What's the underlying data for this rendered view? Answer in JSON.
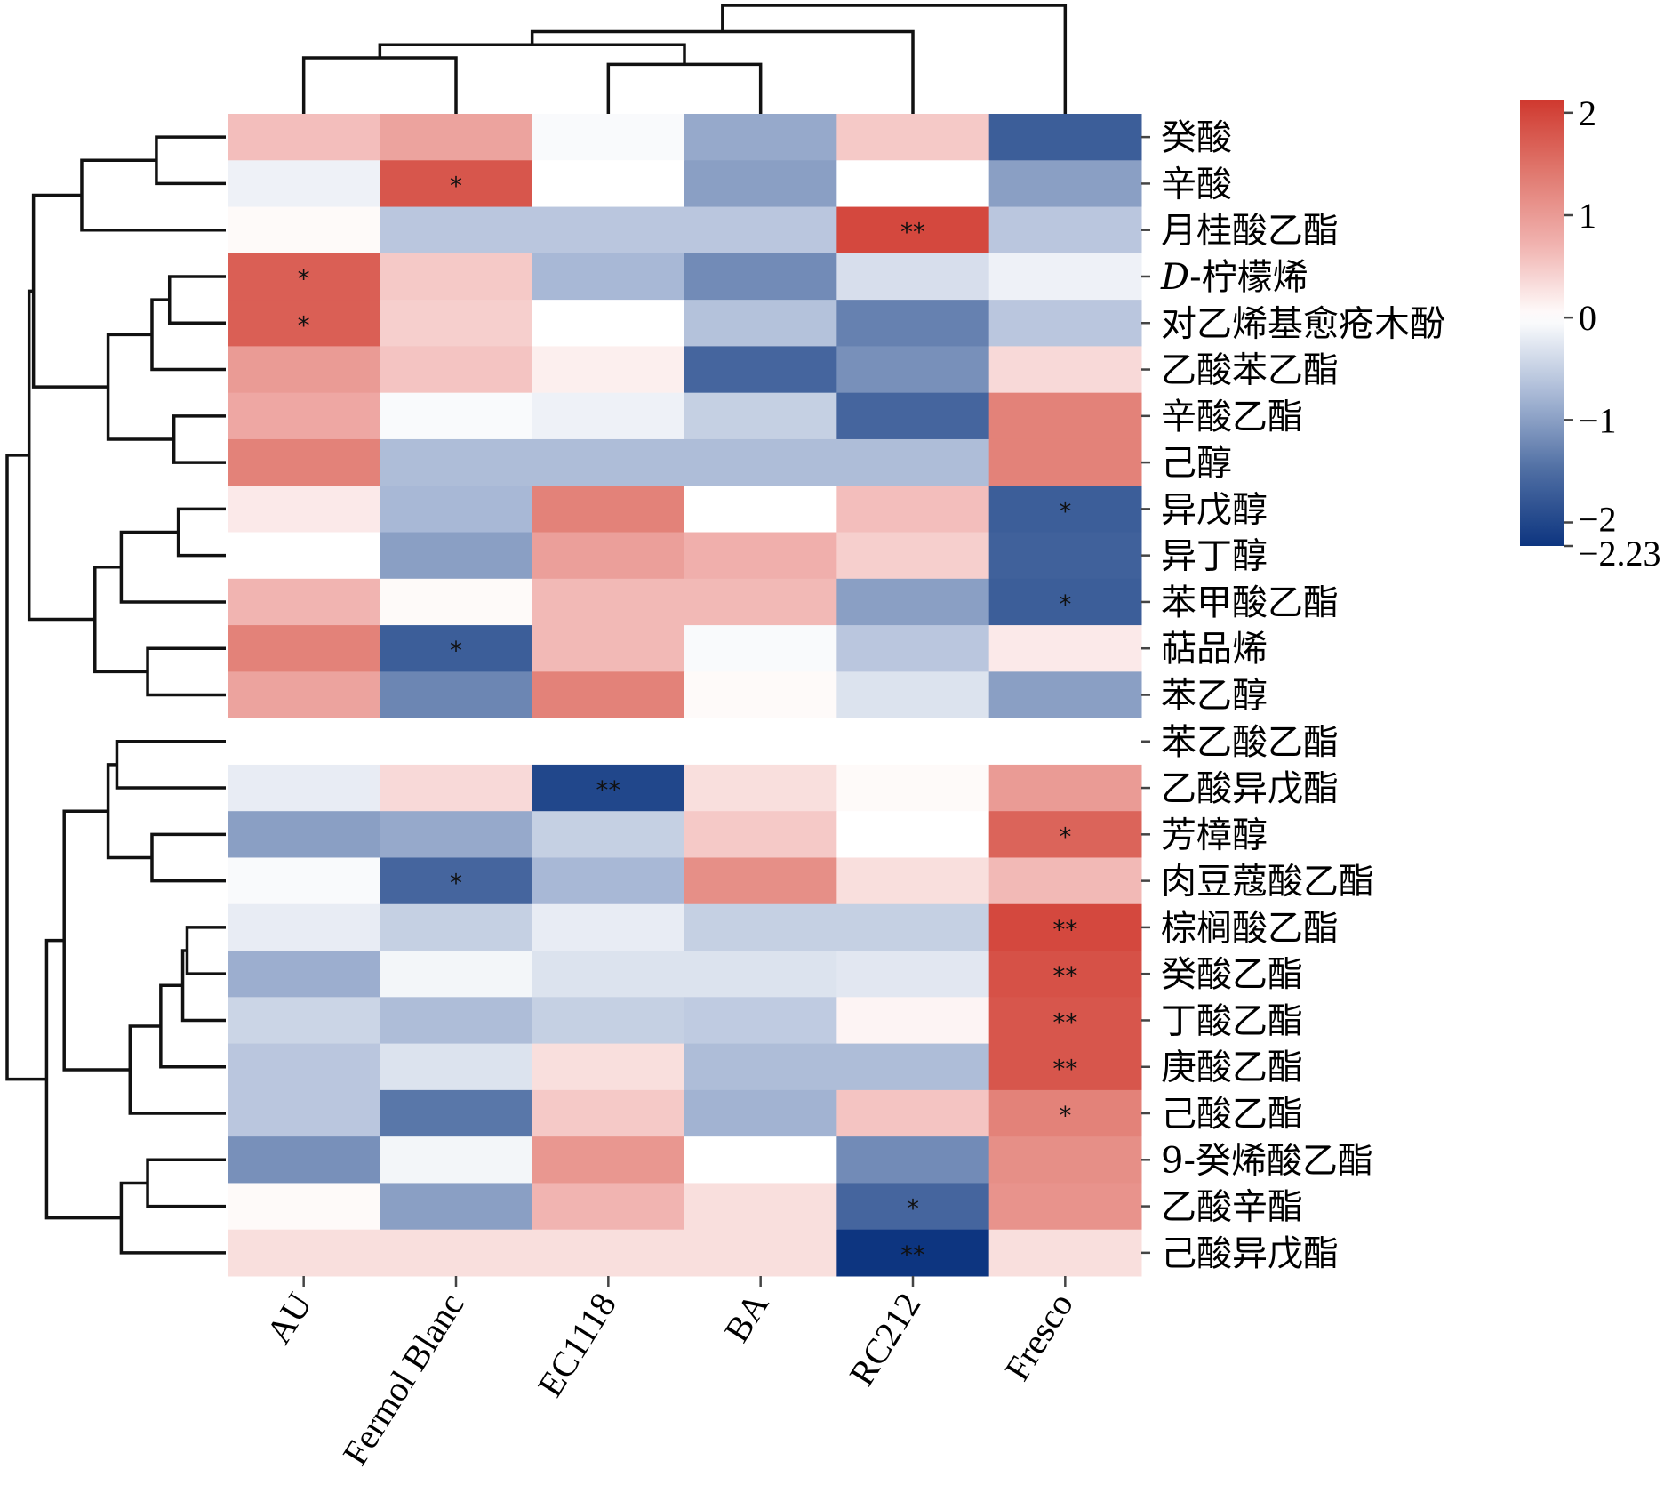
{
  "chart_data": {
    "type": "heatmap",
    "title": "",
    "columns": [
      "AU",
      "Fermol Blanc",
      "EC1118",
      "BA",
      "RC212",
      "Fresco"
    ],
    "rows": [
      "癸酸",
      "辛酸",
      "月桂酸乙酯",
      "D-柠檬烯",
      "对乙烯基愈疮木酚",
      "乙酸苯乙酯",
      "辛酸乙酯",
      "己醇",
      "异戊醇",
      "异丁醇",
      "苯甲酸乙酯",
      "萜品烯",
      "苯乙醇",
      "苯乙酸乙酯",
      "乙酸异戊酯",
      "芳樟醇",
      "肉豆蔻酸乙酯",
      "棕榈酸乙酯",
      "癸酸乙酯",
      "丁酸乙酯",
      "庚酸乙酯",
      "己酸乙酯",
      "9-癸烯酸乙酯",
      "乙酸辛酯",
      "己酸异戊酯"
    ],
    "row_label_italic_prefix": {
      "3": "D"
    },
    "values": [
      [
        0.6,
        0.9,
        -0.05,
        -0.9,
        0.5,
        -1.7
      ],
      [
        -0.15,
        1.8,
        0.0,
        -1.0,
        0.0,
        -1.0
      ],
      [
        0.05,
        -0.6,
        -0.6,
        -0.6,
        1.95,
        -0.6
      ],
      [
        1.7,
        0.5,
        -0.75,
        -1.2,
        -0.35,
        -0.15
      ],
      [
        1.7,
        0.45,
        0.0,
        -0.65,
        -1.3,
        -0.6
      ],
      [
        1.0,
        0.55,
        0.15,
        -1.6,
        -1.15,
        0.35
      ],
      [
        0.85,
        -0.05,
        -0.15,
        -0.5,
        -1.6,
        1.3
      ],
      [
        1.3,
        -0.7,
        -0.7,
        -0.7,
        -0.7,
        1.3
      ],
      [
        0.2,
        -0.75,
        1.3,
        0.0,
        0.6,
        -1.7
      ],
      [
        0.0,
        -1.0,
        0.95,
        0.75,
        0.45,
        -1.65
      ],
      [
        0.7,
        0.05,
        0.65,
        0.65,
        -1.0,
        -1.7
      ],
      [
        1.3,
        -1.7,
        0.65,
        -0.05,
        -0.6,
        0.2
      ],
      [
        0.9,
        -1.25,
        1.3,
        0.05,
        -0.3,
        -1.0
      ],
      [
        0.0,
        0.0,
        0.0,
        0.0,
        0.0,
        0.0
      ],
      [
        -0.2,
        0.35,
        -2.0,
        0.3,
        0.05,
        1.0
      ],
      [
        -1.0,
        -0.9,
        -0.5,
        0.5,
        0.0,
        1.65
      ],
      [
        -0.05,
        -1.6,
        -0.75,
        1.15,
        0.3,
        0.65
      ],
      [
        -0.2,
        -0.5,
        -0.2,
        -0.5,
        -0.5,
        1.95
      ],
      [
        -0.85,
        -0.1,
        -0.3,
        -0.3,
        -0.25,
        1.85
      ],
      [
        -0.45,
        -0.7,
        -0.5,
        -0.55,
        0.1,
        1.8
      ],
      [
        -0.6,
        -0.3,
        0.3,
        -0.7,
        -0.7,
        1.8
      ],
      [
        -0.6,
        -1.4,
        0.5,
        -0.8,
        0.55,
        1.3
      ],
      [
        -1.15,
        -0.1,
        1.05,
        0.0,
        -1.2,
        1.15
      ],
      [
        0.05,
        -1.0,
        0.7,
        0.3,
        -1.6,
        1.1
      ],
      [
        0.3,
        0.3,
        0.3,
        0.3,
        -2.23,
        0.3
      ]
    ],
    "significance": [
      [
        "",
        "",
        "",
        "",
        "",
        ""
      ],
      [
        "",
        "*",
        "",
        "",
        "",
        ""
      ],
      [
        "",
        "",
        "",
        "",
        "**",
        ""
      ],
      [
        "*",
        "",
        "",
        "",
        "",
        ""
      ],
      [
        "*",
        "",
        "",
        "",
        "",
        ""
      ],
      [
        "",
        "",
        "",
        "",
        "",
        ""
      ],
      [
        "",
        "",
        "",
        "",
        "",
        ""
      ],
      [
        "",
        "",
        "",
        "",
        "",
        ""
      ],
      [
        "",
        "",
        "",
        "",
        "",
        "*"
      ],
      [
        "",
        "",
        "",
        "",
        "",
        ""
      ],
      [
        "",
        "",
        "",
        "",
        "",
        "*"
      ],
      [
        "",
        "*",
        "",
        "",
        "",
        ""
      ],
      [
        "",
        "",
        "",
        "",
        "",
        ""
      ],
      [
        "",
        "",
        "",
        "",
        "",
        ""
      ],
      [
        "",
        "",
        "**",
        "",
        "",
        ""
      ],
      [
        "",
        "",
        "",
        "",
        "",
        "*"
      ],
      [
        "",
        "*",
        "",
        "",
        "",
        ""
      ],
      [
        "",
        "",
        "",
        "",
        "",
        "**"
      ],
      [
        "",
        "",
        "",
        "",
        "",
        "**"
      ],
      [
        "",
        "",
        "",
        "",
        "",
        "**"
      ],
      [
        "",
        "",
        "",
        "",
        "",
        "**"
      ],
      [
        "",
        "",
        "",
        "",
        "",
        "*"
      ],
      [
        "",
        "",
        "",
        "",
        "",
        ""
      ],
      [
        "",
        "",
        "",
        "",
        "*",
        ""
      ],
      [
        "",
        "",
        "",
        "",
        "**",
        ""
      ]
    ],
    "colorbar": {
      "vmin": -2.23,
      "vmax": 2.12,
      "ticks": [
        2,
        1,
        0,
        -1,
        -2,
        -2.23
      ],
      "tick_labels": [
        "2",
        "1",
        "0",
        "−1",
        "−2",
        "−2.23"
      ],
      "colormap": [
        "#0d3580",
        "#4f6ea3",
        "#a9b9d6",
        "#ffffff",
        "#f1b3b0",
        "#e0796f",
        "#d0392f"
      ],
      "placement": "top-right"
    },
    "row_dendrogram": {
      "merges": [
        [
          0,
          1,
          1.5
        ],
        [
          25,
          2,
          3.2
        ],
        [
          3,
          4,
          1.2
        ],
        [
          27,
          5,
          1.6
        ],
        [
          6,
          7,
          1.1
        ],
        [
          28,
          29,
          2.6
        ],
        [
          26,
          30,
          4.3
        ],
        [
          8,
          9,
          1.0
        ],
        [
          8,
          10,
          1.0
        ],
        [
          33,
          10,
          2.3
        ],
        [
          11,
          12,
          1.7
        ],
        [
          34,
          35,
          2.9
        ],
        [
          31,
          36,
          4.4
        ],
        [
          13,
          14,
          2.4
        ],
        [
          15,
          16,
          1.6
        ],
        [
          38,
          39,
          2.6
        ],
        [
          17,
          18,
          0.8
        ],
        [
          40,
          19,
          0.9
        ],
        [
          41,
          20,
          1.4
        ],
        [
          42,
          21,
          2.1
        ],
        [
          39,
          43,
          3.6
        ],
        [
          22,
          23,
          1.7
        ],
        [
          45,
          24,
          2.3
        ],
        [
          44,
          46,
          4.0
        ],
        [
          37,
          47,
          4.9
        ]
      ],
      "note": "merges are [left, right, distance]; leaf indices 0–24 are rows, internal nodes numbered from 25 upward"
    },
    "col_dendrogram": {
      "merges": [
        [
          0,
          1,
          1.6
        ],
        [
          2,
          3,
          1.4
        ],
        [
          6,
          7,
          2.0
        ],
        [
          8,
          4,
          2.4
        ],
        [
          9,
          5,
          3.2
        ]
      ],
      "note": "merges are [left, right, distance]; leaf indices 0–5 are columns"
    }
  }
}
